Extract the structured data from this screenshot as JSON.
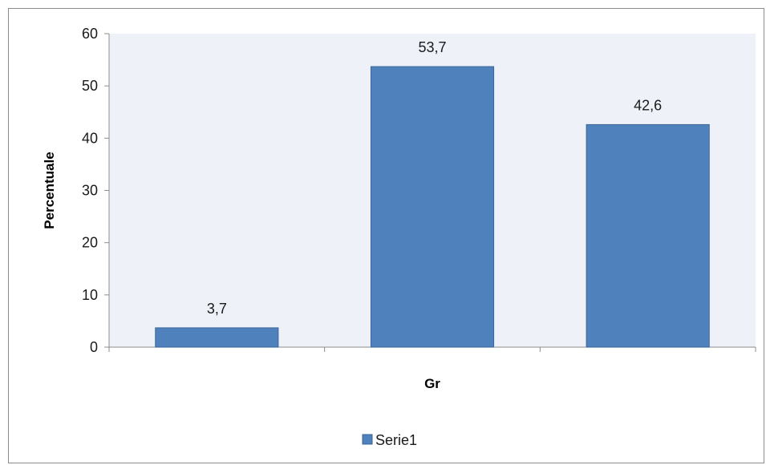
{
  "chart_data": {
    "type": "bar",
    "categories": [
      "",
      "",
      ""
    ],
    "series": [
      {
        "name": "Serie1",
        "values": [
          3.7,
          53.7,
          42.6
        ]
      }
    ],
    "data_labels": [
      "3,7",
      "53,7",
      "42,6"
    ],
    "title": "",
    "xlabel": "Gr",
    "ylabel": "Percentuale",
    "ylim": [
      0,
      60
    ],
    "yticks": [
      0,
      10,
      20,
      30,
      40,
      50,
      60
    ],
    "ytick_labels": [
      "0",
      "10",
      "20",
      "30",
      "40",
      "50",
      "60"
    ],
    "grid": false,
    "legend": "bottom"
  },
  "colors": {
    "bar_fill": "#4f81bd",
    "bar_stroke": "#3a6595",
    "plot_background": "#eef2f8",
    "axis": "#8c8c8c"
  }
}
